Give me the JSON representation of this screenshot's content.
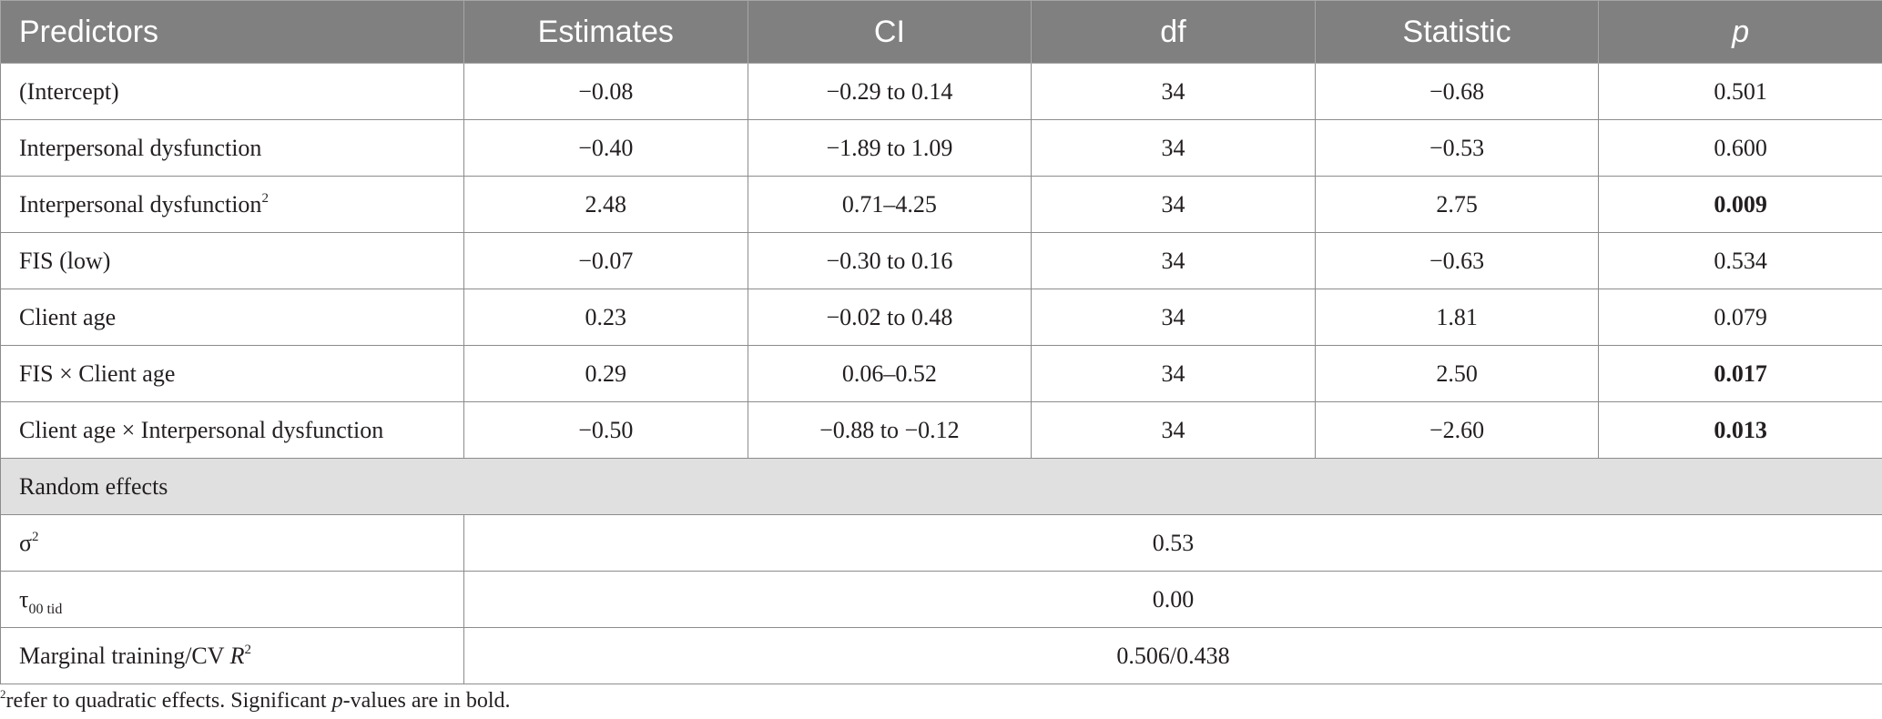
{
  "table": {
    "headers": [
      "Predictors",
      "Estimates",
      "CI",
      "df",
      "Statistic",
      "p"
    ],
    "fixed_rows": [
      {
        "label": "(Intercept)",
        "estimate": "−0.08",
        "ci": "−0.29 to 0.14",
        "df": "34",
        "statistic": "−0.68",
        "p": "0.501"
      },
      {
        "label": "Interpersonal dysfunction",
        "estimate": "−0.40",
        "ci": "−1.89 to 1.09",
        "df": "34",
        "statistic": "−0.53",
        "p": "0.600"
      },
      {
        "label": "Interpersonal dysfunction",
        "label_sup": "2",
        "estimate": "2.48",
        "ci": "0.71–4.25",
        "df": "34",
        "statistic": "2.75",
        "p": "0.009"
      },
      {
        "label": "FIS (low)",
        "estimate": "−0.07",
        "ci": "−0.30 to 0.16",
        "df": "34",
        "statistic": "−0.63",
        "p": "0.534"
      },
      {
        "label": "Client age",
        "estimate": "0.23",
        "ci": "−0.02 to 0.48",
        "df": "34",
        "statistic": "1.81",
        "p": "0.079"
      },
      {
        "label": "FIS × Client age",
        "estimate": "0.29",
        "ci": "0.06–0.52",
        "df": "34",
        "statistic": "2.50",
        "p": "0.017"
      },
      {
        "label": "Client age × Interpersonal dysfunction",
        "estimate": "−0.50",
        "ci": "−0.88 to −0.12",
        "df": "34",
        "statistic": "−2.60",
        "p": "0.013"
      }
    ],
    "random_effects": {
      "section_label": "Random effects",
      "sigma": {
        "label": "σ",
        "sup": "2",
        "value": "0.53"
      },
      "tau": {
        "label": "τ",
        "sub": "00 tid",
        "value": "0.00"
      },
      "marginal": {
        "label": "Marginal training/CV",
        "label_italic": "R",
        "sup": "2",
        "value": "0.506/0.438"
      }
    }
  },
  "footnote": {
    "sup": "2",
    "text_before": "refer to quadratic effects. Significant ",
    "italic": "p",
    "text_after": "-values are in bold."
  }
}
